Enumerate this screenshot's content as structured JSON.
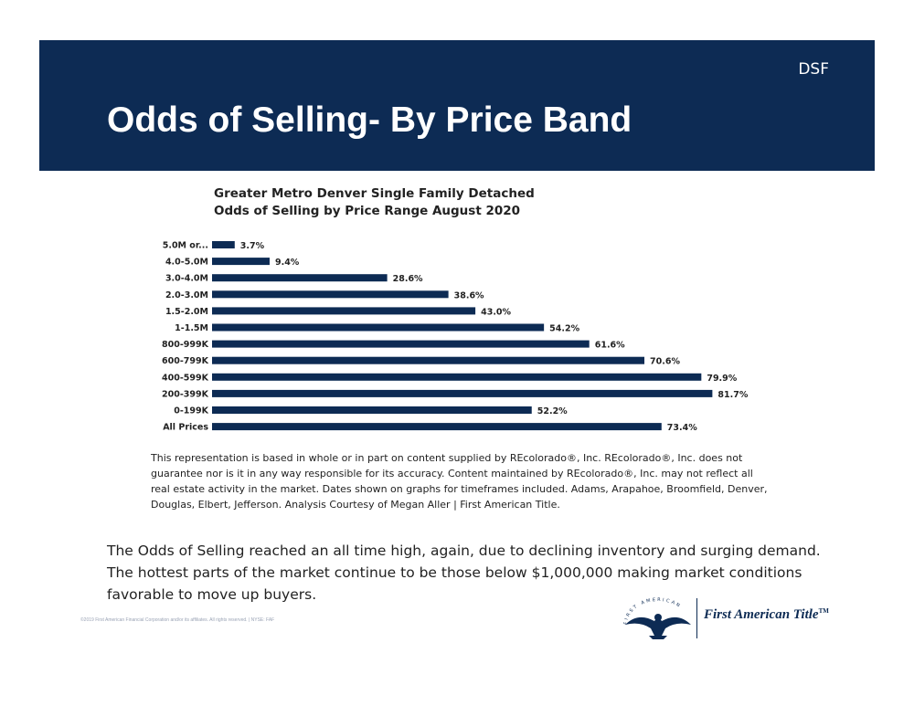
{
  "header": {
    "tag": "DSF",
    "title": "Odds of Selling- By Price Band"
  },
  "chart_data": {
    "type": "bar",
    "orientation": "horizontal",
    "title": "Greater Metro Denver Single Family Detached",
    "subtitle": "Odds of Selling by Price Range August 2020",
    "categories": [
      "5.0M or...",
      "4.0-5.0M",
      "3.0-4.0M",
      "2.0-3.0M",
      "1.5-2.0M",
      "1-1.5M",
      "800-999K",
      "600-799K",
      "400-599K",
      "200-399K",
      "0-199K",
      "All Prices"
    ],
    "values": [
      3.7,
      9.4,
      28.6,
      38.6,
      43.0,
      54.2,
      61.6,
      70.6,
      79.9,
      81.7,
      52.2,
      73.4
    ],
    "value_labels": [
      "3.7%",
      "9.4%",
      "28.6%",
      "38.6%",
      "43.0%",
      "54.2%",
      "61.6%",
      "70.6%",
      "79.9%",
      "81.7%",
      "52.2%",
      "73.4%"
    ],
    "xlim": [
      0,
      100
    ],
    "bar_color": "#0d2b54",
    "grid": false,
    "legend": "none"
  },
  "disclaimer": "This representation is based in whole or in part on content supplied by REcolorado®, Inc. REcolorado®, Inc. does not guarantee nor is it in any way responsible for its accuracy. Content maintained by REcolorado®, Inc. may not reflect all real estate activity in the market. Dates shown on graphs for timeframes included.  Adams, Arapahoe, Broomfield, Denver, Douglas, Elbert, Jefferson. Analysis Courtesy of Megan Aller | First American Title.",
  "summary": "The Odds of Selling reached an all time high, again, due to declining inventory and surging demand. The hottest parts of the market continue to be those below $1,000,000 making market conditions favorable to move up buyers.",
  "footer": {
    "copyright": "©2019 First American Financial Corporation and/or its affiliates. All rights reserved. | NYSE: FAF",
    "logo_ring_text": "FIRST AMERICAN",
    "logo_name": "First American Title",
    "logo_mark": "TM"
  },
  "colors": {
    "brand_navy": "#0d2b54"
  }
}
